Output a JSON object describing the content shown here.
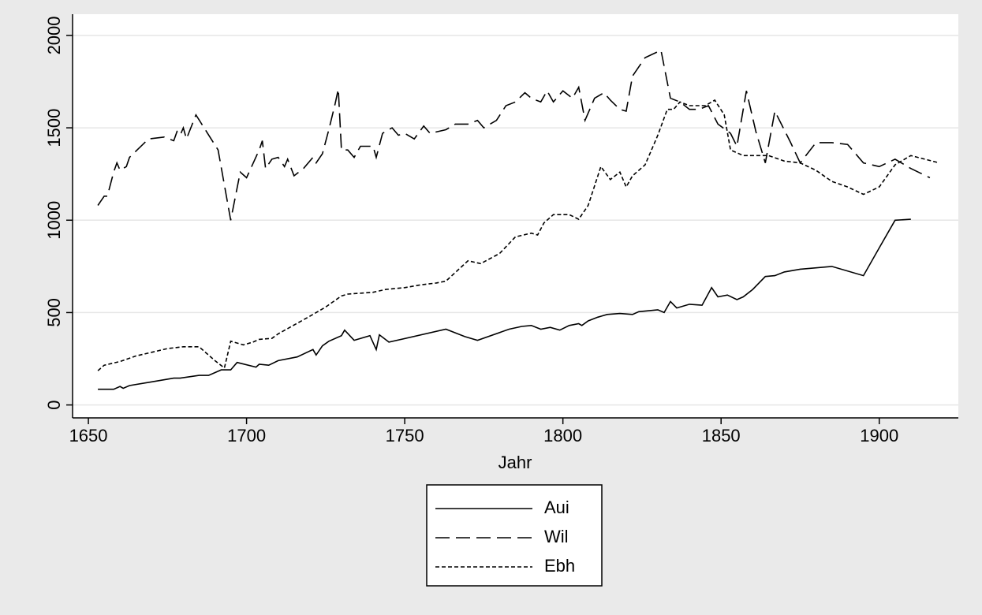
{
  "chart_data": {
    "type": "line",
    "x_label": "Jahr",
    "xlim": [
      1645,
      1925
    ],
    "xticks": [
      1650,
      1700,
      1750,
      1800,
      1850,
      1900
    ],
    "ylim": [
      -70,
      2115
    ],
    "yticks": [
      0,
      500,
      1000,
      1500,
      2000
    ],
    "grid": true,
    "series": [
      {
        "name": "Aui",
        "color": "#000000",
        "dash": "solid",
        "x": [
          1653,
          1658,
          1660,
          1661,
          1663,
          1670,
          1677,
          1679,
          1685,
          1688,
          1692,
          1695,
          1697,
          1703,
          1704,
          1707,
          1710,
          1716,
          1721,
          1722,
          1724,
          1726,
          1730,
          1731,
          1734,
          1739,
          1741,
          1742,
          1745,
          1763,
          1769,
          1773,
          1783,
          1787,
          1790,
          1793,
          1796,
          1799,
          1802,
          1805,
          1806,
          1808,
          1811,
          1814,
          1818,
          1822,
          1824,
          1830,
          1832,
          1834,
          1836,
          1840,
          1844,
          1847,
          1849,
          1852,
          1855,
          1857,
          1860,
          1864,
          1867,
          1870,
          1875,
          1885,
          1895,
          1900,
          1905,
          1910
        ],
        "values": [
          85,
          85,
          100,
          90,
          105,
          125,
          145,
          145,
          160,
          160,
          190,
          190,
          230,
          205,
          220,
          215,
          240,
          260,
          300,
          270,
          320,
          345,
          375,
          405,
          350,
          375,
          300,
          380,
          340,
          410,
          370,
          350,
          410,
          425,
          430,
          410,
          420,
          405,
          430,
          440,
          430,
          455,
          475,
          490,
          495,
          490,
          505,
          515,
          500,
          560,
          525,
          545,
          540,
          635,
          585,
          595,
          570,
          585,
          625,
          695,
          700,
          720,
          735,
          750,
          700,
          850,
          1000,
          1005
        ]
      },
      {
        "name": "Wil",
        "color": "#000000",
        "dash": "long",
        "x": [
          1653,
          1655,
          1656,
          1658,
          1659,
          1660,
          1662,
          1663,
          1669,
          1674,
          1677,
          1678,
          1679,
          1680,
          1681,
          1684,
          1691,
          1695,
          1698,
          1700,
          1704,
          1705,
          1706,
          1708,
          1710,
          1712,
          1713,
          1715,
          1718,
          1721,
          1722,
          1724,
          1726,
          1728,
          1729,
          1730,
          1732,
          1734,
          1736,
          1740,
          1741,
          1743,
          1746,
          1748,
          1750,
          1753,
          1756,
          1758,
          1763,
          1766,
          1770,
          1773,
          1775,
          1779,
          1782,
          1785,
          1788,
          1790,
          1793,
          1795,
          1797,
          1800,
          1803,
          1805,
          1807,
          1810,
          1813,
          1815,
          1818,
          1820,
          1822,
          1826,
          1831,
          1834,
          1837,
          1840,
          1843,
          1846,
          1849,
          1853,
          1855,
          1858,
          1861,
          1864,
          1867,
          1872,
          1875,
          1880,
          1885,
          1890,
          1895,
          1900,
          1905,
          1910,
          1916
        ],
        "values": [
          1080,
          1130,
          1130,
          1260,
          1310,
          1270,
          1290,
          1340,
          1440,
          1450,
          1430,
          1480,
          1460,
          1500,
          1440,
          1570,
          1380,
          1000,
          1260,
          1230,
          1380,
          1430,
          1280,
          1330,
          1340,
          1290,
          1330,
          1240,
          1280,
          1340,
          1310,
          1360,
          1490,
          1630,
          1710,
          1380,
          1380,
          1340,
          1400,
          1400,
          1340,
          1470,
          1500,
          1460,
          1470,
          1440,
          1510,
          1470,
          1490,
          1520,
          1520,
          1540,
          1500,
          1540,
          1620,
          1640,
          1690,
          1660,
          1640,
          1700,
          1640,
          1700,
          1660,
          1720,
          1540,
          1660,
          1690,
          1650,
          1600,
          1590,
          1780,
          1880,
          1920,
          1660,
          1640,
          1600,
          1600,
          1620,
          1520,
          1470,
          1400,
          1700,
          1480,
          1310,
          1590,
          1420,
          1310,
          1420,
          1420,
          1410,
          1310,
          1290,
          1330,
          1280,
          1230
        ]
      },
      {
        "name": "Ebh",
        "color": "#000000",
        "dash": "short",
        "x": [
          1653,
          1655,
          1660,
          1665,
          1670,
          1675,
          1680,
          1685,
          1690,
          1693,
          1695,
          1699,
          1702,
          1704,
          1708,
          1710,
          1720,
          1725,
          1730,
          1732,
          1740,
          1744,
          1750,
          1755,
          1760,
          1763,
          1770,
          1774,
          1780,
          1785,
          1790,
          1792,
          1794,
          1797,
          1802,
          1805,
          1808,
          1812,
          1815,
          1818,
          1820,
          1822,
          1826,
          1830,
          1833,
          1835,
          1837,
          1840,
          1845,
          1848,
          1851,
          1853,
          1857,
          1865,
          1870,
          1875,
          1880,
          1885,
          1890,
          1895,
          1900,
          1905,
          1910,
          1919
        ],
        "values": [
          185,
          215,
          235,
          265,
          285,
          305,
          315,
          315,
          240,
          200,
          345,
          325,
          340,
          355,
          360,
          385,
          480,
          530,
          590,
          600,
          610,
          625,
          635,
          650,
          660,
          670,
          780,
          765,
          820,
          910,
          930,
          920,
          985,
          1030,
          1030,
          1005,
          1080,
          1290,
          1220,
          1260,
          1180,
          1240,
          1300,
          1460,
          1600,
          1600,
          1640,
          1620,
          1620,
          1650,
          1570,
          1380,
          1350,
          1350,
          1320,
          1310,
          1270,
          1210,
          1180,
          1140,
          1180,
          1300,
          1350,
          1310
        ]
      }
    ]
  }
}
